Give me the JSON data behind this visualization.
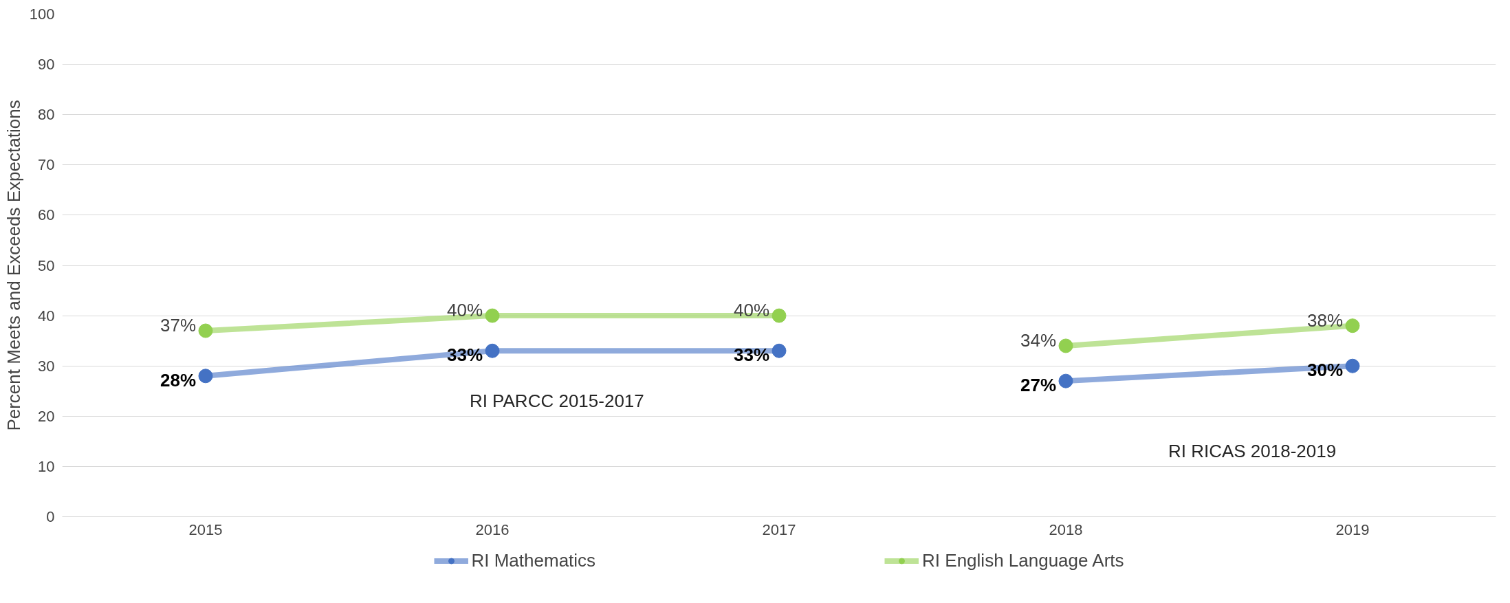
{
  "chart_data": {
    "type": "line",
    "ylabel": "Percent Meets and Exceeds Expectations",
    "categories": [
      "2015",
      "2016",
      "2017",
      "2018",
      "2019"
    ],
    "series": [
      {
        "name": "RI Mathematics",
        "color": "#4472c4",
        "values": [
          28,
          33,
          33,
          null,
          null
        ],
        "value_labels": [
          "28%",
          "33%",
          "33%",
          null,
          null
        ]
      },
      {
        "name": "RI English Language Arts",
        "color": "#92d050",
        "values": [
          37,
          40,
          40,
          null,
          null
        ],
        "value_labels": [
          "37%",
          "40%",
          "40%",
          null,
          null
        ]
      },
      {
        "color": "#4472c4",
        "values": [
          null,
          null,
          null,
          27,
          30
        ],
        "value_labels": [
          null,
          null,
          null,
          "27%",
          "30%"
        ]
      },
      {
        "color": "#92d050",
        "values": [
          null,
          null,
          null,
          34,
          38
        ],
        "value_labels": [
          null,
          null,
          null,
          "34%",
          "38%"
        ]
      }
    ],
    "ylim": [
      0,
      100
    ],
    "yticks": [
      0,
      10,
      20,
      30,
      40,
      50,
      60,
      70,
      80,
      90,
      100
    ],
    "grid": "y",
    "legend": "bottom",
    "marker": "circle",
    "line_style": "solid",
    "annotations": [
      "RI PARCC 2015-2017",
      "RI RICAS 2018-2019"
    ]
  }
}
